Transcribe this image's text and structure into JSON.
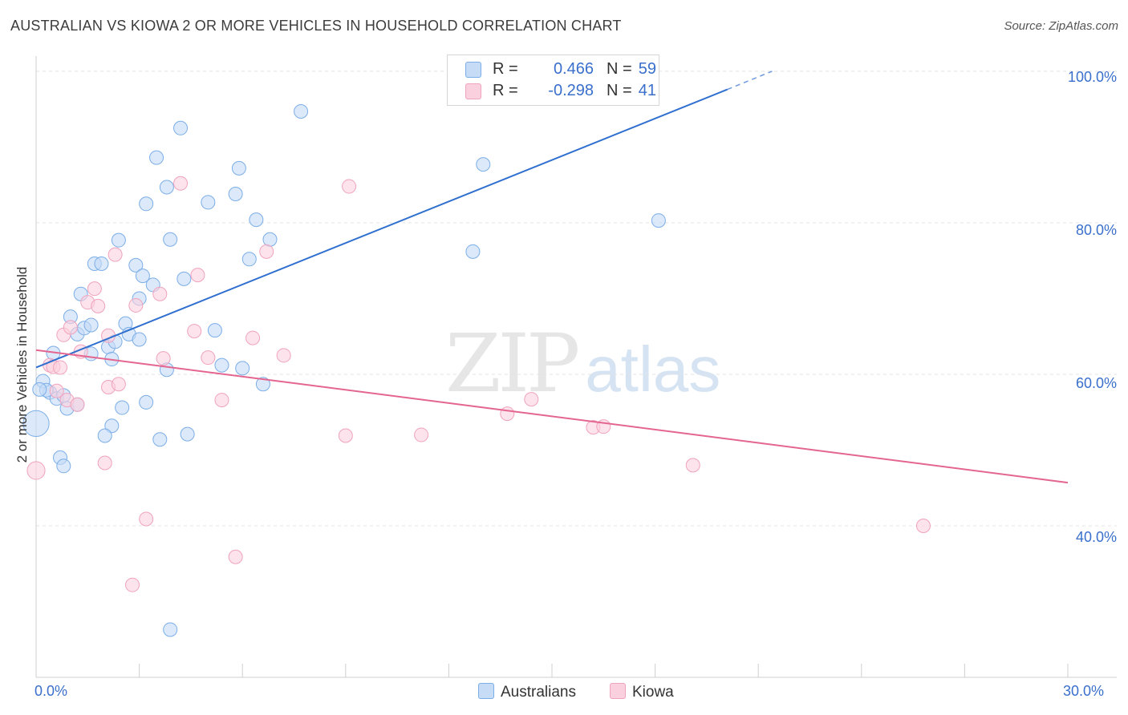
{
  "header": {
    "title": "AUSTRALIAN VS KIOWA 2 OR MORE VEHICLES IN HOUSEHOLD CORRELATION CHART",
    "source": "Source: ZipAtlas.com"
  },
  "watermark": {
    "zip": "ZIP",
    "atlas": "atlas"
  },
  "stats": [
    {
      "r_label": "R =",
      "r_value": "0.466",
      "n_label": "N =",
      "n_value": "59",
      "color": "#7baee8"
    },
    {
      "r_label": "R =",
      "r_value": "-0.298",
      "n_label": "N =",
      "n_value": "41",
      "color": "#f0a3bd"
    }
  ],
  "legend": {
    "australians": "Australians",
    "kiowa": "Kiowa"
  },
  "axes": {
    "ylabel": "2 or more Vehicles in Household",
    "x_min_label": "0.0%",
    "x_max_label": "30.0%",
    "y_ticks": [
      "100.0%",
      "80.0%",
      "60.0%",
      "40.0%"
    ]
  },
  "chart_data": {
    "type": "scatter",
    "title": "AUSTRALIAN VS KIOWA 2 OR MORE VEHICLES IN HOUSEHOLD CORRELATION CHART",
    "xlabel": "",
    "ylabel": "2 or more Vehicles in Household",
    "xlim": [
      0,
      30
    ],
    "ylim": [
      20,
      102
    ],
    "x_unit": "%",
    "y_unit": "%",
    "grid": true,
    "legend_position": "bottom-center",
    "series": [
      {
        "name": "Australians",
        "color": "#7baee8",
        "line_color": "#2f6fcf",
        "trend": {
          "x0": 0.0,
          "y0": 60.9,
          "x1": 20.1,
          "y1": 97.6,
          "dashed_to_x": 21.4,
          "dashed_to_y": 100.0
        },
        "points": [
          [
            0.2,
            59.1
          ],
          [
            0.4,
            57.6
          ],
          [
            0.3,
            57.9
          ],
          [
            0.5,
            62.8
          ],
          [
            0.6,
            56.8
          ],
          [
            0.8,
            57.2
          ],
          [
            0.9,
            55.5
          ],
          [
            0.7,
            49.0
          ],
          [
            0.8,
            47.9
          ],
          [
            1.0,
            67.6
          ],
          [
            1.2,
            65.3
          ],
          [
            1.3,
            70.6
          ],
          [
            1.4,
            66.1
          ],
          [
            1.6,
            66.5
          ],
          [
            1.7,
            74.6
          ],
          [
            1.6,
            62.7
          ],
          [
            1.9,
            74.6
          ],
          [
            2.1,
            63.6
          ],
          [
            2.2,
            62.0
          ],
          [
            2.3,
            64.3
          ],
          [
            2.4,
            77.7
          ],
          [
            2.6,
            66.7
          ],
          [
            2.7,
            65.3
          ],
          [
            2.9,
            74.4
          ],
          [
            3.0,
            70.0
          ],
          [
            3.0,
            64.6
          ],
          [
            3.1,
            73.0
          ],
          [
            3.2,
            82.5
          ],
          [
            3.4,
            71.8
          ],
          [
            3.5,
            88.6
          ],
          [
            3.8,
            84.7
          ],
          [
            3.9,
            77.8
          ],
          [
            4.2,
            92.5
          ],
          [
            4.3,
            72.6
          ],
          [
            5.0,
            82.7
          ],
          [
            5.2,
            65.8
          ],
          [
            5.4,
            61.2
          ],
          [
            5.8,
            83.8
          ],
          [
            5.9,
            87.2
          ],
          [
            6.0,
            60.8
          ],
          [
            6.2,
            75.2
          ],
          [
            6.4,
            80.4
          ],
          [
            6.6,
            58.7
          ],
          [
            6.8,
            77.8
          ],
          [
            7.7,
            94.7
          ],
          [
            2.5,
            55.6
          ],
          [
            2.2,
            53.2
          ],
          [
            3.2,
            56.3
          ],
          [
            3.6,
            51.4
          ],
          [
            2.0,
            51.9
          ],
          [
            4.4,
            52.1
          ],
          [
            3.8,
            60.6
          ],
          [
            1.2,
            56.0
          ],
          [
            13.0,
            87.7
          ],
          [
            12.7,
            76.2
          ],
          [
            18.1,
            80.3
          ],
          [
            3.9,
            26.3
          ],
          [
            0.0,
            53.5
          ],
          [
            0.1,
            58.0
          ]
        ],
        "sizes": [
          10,
          10,
          10,
          10,
          10,
          10,
          10,
          10,
          10,
          10,
          10,
          10,
          10,
          10,
          10,
          10,
          10,
          10,
          10,
          10,
          10,
          10,
          10,
          10,
          10,
          10,
          10,
          10,
          10,
          10,
          10,
          10,
          10,
          10,
          10,
          10,
          10,
          10,
          10,
          10,
          10,
          10,
          10,
          10,
          10,
          10,
          10,
          10,
          10,
          10,
          10,
          10,
          10,
          10,
          10,
          10,
          10,
          19,
          10
        ]
      },
      {
        "name": "Kiowa",
        "color": "#f0a3bd",
        "line_color": "#e36590",
        "trend": {
          "x0": 0.0,
          "y0": 63.2,
          "x1": 30.0,
          "y1": 45.7
        },
        "points": [
          [
            0.0,
            47.3
          ],
          [
            0.4,
            61.2
          ],
          [
            0.5,
            61.0
          ],
          [
            0.6,
            57.8
          ],
          [
            0.7,
            60.9
          ],
          [
            0.8,
            65.2
          ],
          [
            0.9,
            56.6
          ],
          [
            1.0,
            66.2
          ],
          [
            1.2,
            56.0
          ],
          [
            1.3,
            63.0
          ],
          [
            1.5,
            69.5
          ],
          [
            1.7,
            71.3
          ],
          [
            1.8,
            69.0
          ],
          [
            2.0,
            48.3
          ],
          [
            2.1,
            58.3
          ],
          [
            2.1,
            65.1
          ],
          [
            2.3,
            75.8
          ],
          [
            2.4,
            58.7
          ],
          [
            2.8,
            32.2
          ],
          [
            2.9,
            69.1
          ],
          [
            3.2,
            40.9
          ],
          [
            3.6,
            70.6
          ],
          [
            3.7,
            62.1
          ],
          [
            4.2,
            85.2
          ],
          [
            4.6,
            65.7
          ],
          [
            4.7,
            73.1
          ],
          [
            5.0,
            62.2
          ],
          [
            5.4,
            56.6
          ],
          [
            5.8,
            35.9
          ],
          [
            6.3,
            64.8
          ],
          [
            6.7,
            76.2
          ],
          [
            7.2,
            62.5
          ],
          [
            9.0,
            51.9
          ],
          [
            9.1,
            84.8
          ],
          [
            11.2,
            52.0
          ],
          [
            13.7,
            54.8
          ],
          [
            14.4,
            56.7
          ],
          [
            16.2,
            53.0
          ],
          [
            16.5,
            53.1
          ],
          [
            19.1,
            48.0
          ],
          [
            25.8,
            40.0
          ]
        ],
        "sizes": [
          13,
          10,
          10,
          10,
          10,
          10,
          10,
          10,
          10,
          10,
          10,
          10,
          10,
          10,
          10,
          10,
          10,
          10,
          10,
          10,
          10,
          10,
          10,
          10,
          10,
          10,
          10,
          10,
          10,
          10,
          10,
          10,
          10,
          10,
          10,
          10,
          10,
          10,
          10,
          10,
          10
        ]
      }
    ]
  }
}
